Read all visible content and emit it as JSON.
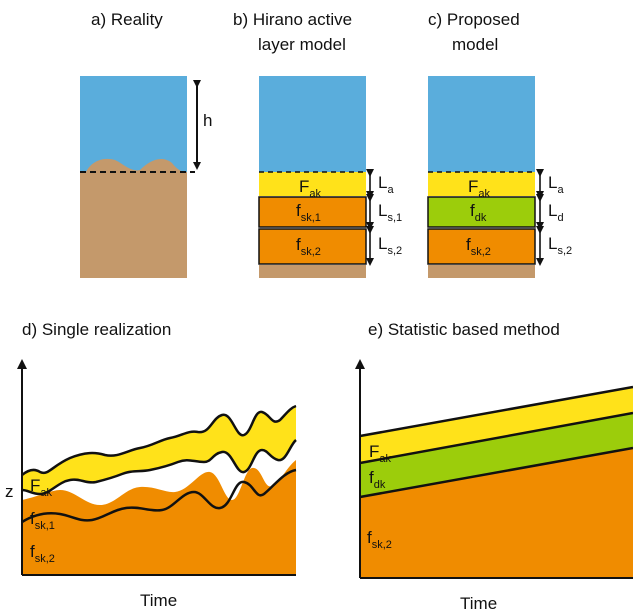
{
  "panels": {
    "a": {
      "title": "a) Reality",
      "h_label": "h"
    },
    "b": {
      "title_line1": "b) Hirano active",
      "title_line2": "layer model",
      "layers": [
        {
          "main": "F",
          "sub": "ak"
        },
        {
          "main": "f",
          "sub": "sk,1"
        },
        {
          "main": "f",
          "sub": "sk,2"
        }
      ],
      "thickness": [
        {
          "main": "L",
          "sub": "a"
        },
        {
          "main": "L",
          "sub": "s,1"
        },
        {
          "main": "L",
          "sub": "s,2"
        }
      ]
    },
    "c": {
      "title_line1": "c) Proposed",
      "title_line2": "model",
      "layers": [
        {
          "main": "F",
          "sub": "ak"
        },
        {
          "main": "f",
          "sub": "dk"
        },
        {
          "main": "f",
          "sub": "sk,2"
        }
      ],
      "thickness": [
        {
          "main": "L",
          "sub": "a"
        },
        {
          "main": "L",
          "sub": "d"
        },
        {
          "main": "L",
          "sub": "s,2"
        }
      ]
    },
    "d": {
      "title": "d) Single realization",
      "ylabel": "z",
      "xlabel": "Time",
      "layers": [
        {
          "main": "F",
          "sub": "ak"
        },
        {
          "main": "f",
          "sub": "sk,1"
        },
        {
          "main": "f",
          "sub": "sk,2"
        }
      ]
    },
    "e": {
      "title": "e) Statistic based method",
      "xlabel": "Time",
      "layers": [
        {
          "main": "F",
          "sub": "ak"
        },
        {
          "main": "f",
          "sub": "dk"
        },
        {
          "main": "f",
          "sub": "sk,2"
        }
      ]
    }
  },
  "colors": {
    "water": "#5aaddc",
    "sediment": "#c4996b",
    "active_layer": "#ffe21a",
    "substrate": "#f08c00",
    "deposition_layer": "#9ccd0b",
    "outline": "#111111"
  }
}
